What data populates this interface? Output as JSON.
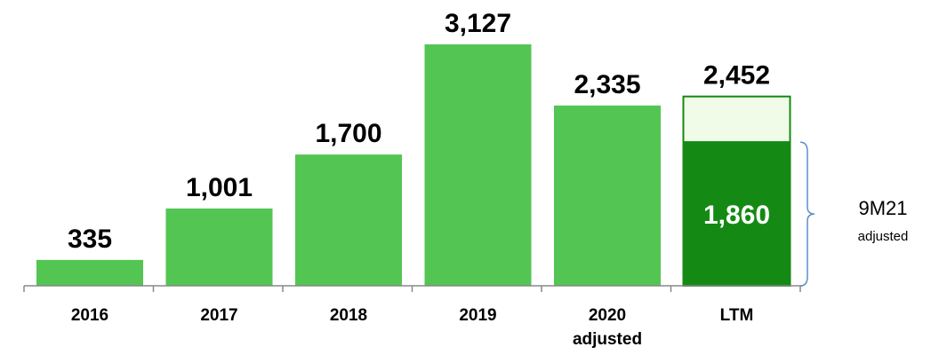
{
  "chart_data": {
    "type": "bar",
    "title": "",
    "xlabel": "",
    "ylabel": "",
    "categories": [
      [
        "2016"
      ],
      [
        "2017"
      ],
      [
        "2018"
      ],
      [
        "2019"
      ],
      [
        "2020",
        "adjusted"
      ],
      [
        "LTM"
      ]
    ],
    "values": [
      335,
      1001,
      1700,
      3127,
      2335,
      2452
    ],
    "value_labels": [
      "335",
      "1,001",
      "1,700",
      "3,127",
      "2,335",
      "2,452"
    ],
    "ylim": [
      0,
      3127
    ],
    "grid": false,
    "stacked_component": {
      "category_index": 5,
      "value": 1860,
      "label": "1,860"
    },
    "annotation": {
      "label": "9M21",
      "sublabel": "adjusted",
      "spans_value": 1860
    },
    "colors": {
      "bar": "#53c553",
      "ltm_base": "#148a14",
      "ltm_top": "#f0fbe8",
      "ltm_border": "#148a14",
      "axis": "#888888",
      "brace": "#5b8fc9"
    }
  }
}
